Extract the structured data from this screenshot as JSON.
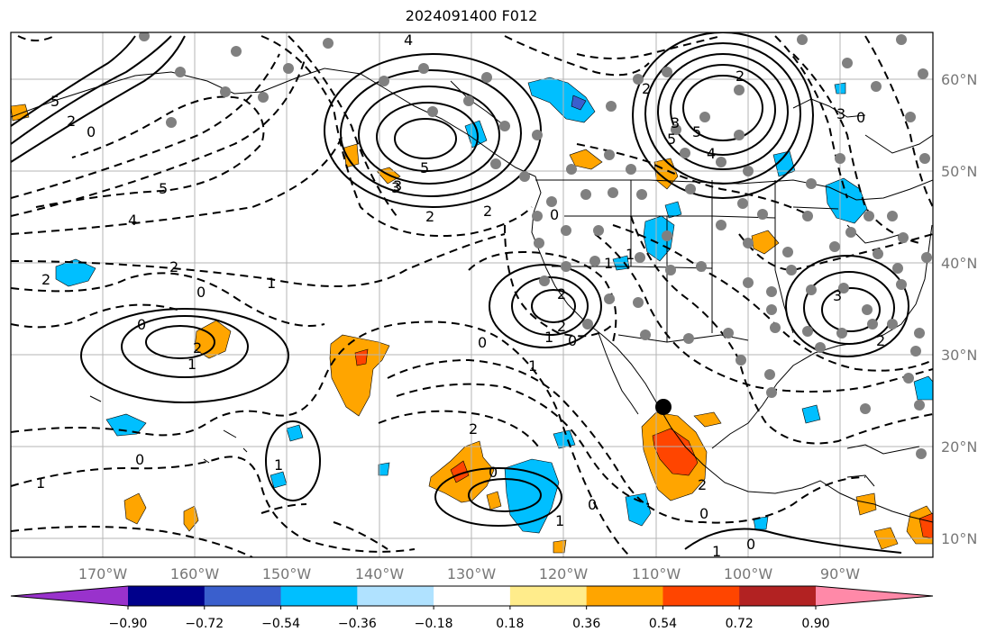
{
  "title": "2024091400 F012",
  "lat_labels": [
    "60°N",
    "50°N",
    "40°N",
    "30°N",
    "20°N",
    "10°N"
  ],
  "lon_labels": [
    "170°W",
    "160°W",
    "150°W",
    "140°W",
    "130°W",
    "120°W",
    "110°W",
    "100°W",
    "90°W"
  ],
  "colorbar": {
    "colors": [
      "#9932cc",
      "#00008b",
      "#3a5fcd",
      "#00bfff",
      "#b0e2ff",
      "#ffffff",
      "#ffec8b",
      "#ffa500",
      "#ff4500",
      "#b22222",
      "#ff89a8"
    ],
    "tick_labels": [
      "−0.90",
      "−0.72",
      "−0.54",
      "−0.36",
      "−0.18",
      "0.18",
      "0.36",
      "0.54",
      "0.72",
      "0.90"
    ]
  },
  "contour_labels": [
    "5",
    "2",
    "0",
    "4",
    "2",
    "0",
    "5",
    "3",
    "2",
    "1",
    "2",
    "0",
    "1",
    "2",
    "3",
    "5",
    "4",
    "2",
    "0",
    "1",
    "2",
    "1",
    "0",
    "1",
    "2",
    "1",
    "0",
    "0",
    "2",
    "0",
    "1",
    "0",
    "2",
    "0",
    "0",
    "1",
    "2",
    "3",
    "0",
    "3",
    "2",
    "1",
    "5",
    "2",
    "4",
    "5",
    "3",
    "1"
  ]
}
